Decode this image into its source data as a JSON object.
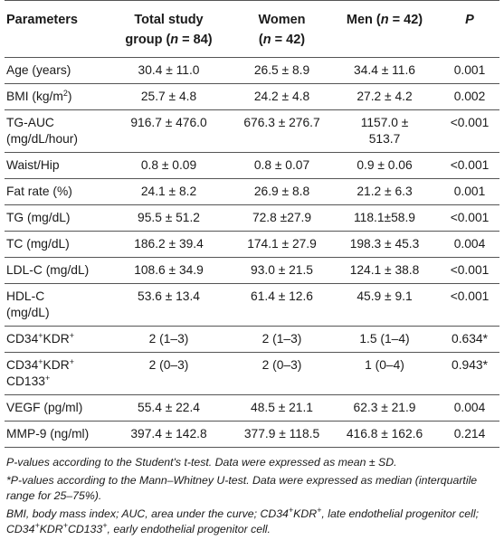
{
  "header": {
    "col1": "Parameters",
    "col2_line1": "Total study",
    "col2_line2a": "group (",
    "col2_n": "n",
    "col2_line2b": " = 84)",
    "col3_line1": "Women",
    "col3_line2a": "(",
    "col3_n": "n",
    "col3_line2b": " = 42)",
    "col4_a": "Men (",
    "col4_n": "n",
    "col4_b": " = 42)",
    "col5": "P"
  },
  "rows": [
    {
      "param": "Age (years)",
      "total": "30.4 ± 11.0",
      "women": "26.5 ± 8.9",
      "men": "34.4 ± 11.6",
      "p": "0.001"
    },
    {
      "param_pre": "BMI (kg/m",
      "param_sup": "2",
      "param_post": ")",
      "total": "25.7 ± 4.8",
      "women": "24.2 ± 4.8",
      "men": "27.2 ± 4.2",
      "p": "0.002"
    },
    {
      "param_l1": "TG-AUC",
      "param_l2": "(mg/dL/hour)",
      "total": "916.7 ± 476.0",
      "women": "676.3 ± 276.7",
      "men_l1": "1157.0 ±",
      "men_l2": "513.7",
      "p": "<0.001"
    },
    {
      "param": "Waist/Hip",
      "total": "0.8 ± 0.09",
      "women": "0.8 ± 0.07",
      "men": "0.9 ± 0.06",
      "p": "<0.001"
    },
    {
      "param": "Fat rate (%)",
      "total": "24.1 ± 8.2",
      "women": "26.9 ± 8.8",
      "men": "21.2 ± 6.3",
      "p": "0.001"
    },
    {
      "param": "TG (mg/dL)",
      "total": "95.5 ± 51.2",
      "women": "72.8 ±27.9",
      "men": "118.1±58.9",
      "p": "<0.001"
    },
    {
      "param": "TC (mg/dL)",
      "total": "186.2 ± 39.4",
      "women": "174.1 ± 27.9",
      "men": "198.3 ± 45.3",
      "p": "0.004"
    },
    {
      "param": "LDL-C (mg/dL)",
      "total": "108.6 ± 34.9",
      "women": "93.0 ± 21.5",
      "men": "124.1 ± 38.8",
      "p": "<0.001"
    },
    {
      "param_l1": "HDL-C",
      "param_l2": "(mg/dL)",
      "total": "53.6 ± 13.4",
      "women": "61.4 ± 12.6",
      "men": "45.9 ± 9.1",
      "p": "<0.001"
    },
    {
      "param_a": "CD34",
      "param_sup1": "+",
      "param_b": "KDR",
      "param_sup2": "+",
      "total": "2 (1–3)",
      "women": "2 (1–3)",
      "men": "1.5 (1–4)",
      "p": "0.634*"
    },
    {
      "param_a": "CD34",
      "param_sup1": "+",
      "param_b": "KDR",
      "param_sup2": "+",
      "param_c": "CD133",
      "param_sup3": "+",
      "total": "2 (0–3)",
      "women": "2 (0–3)",
      "men": "1 (0–4)",
      "p": "0.943*"
    },
    {
      "param": "VEGF (pg/ml)",
      "total": "55.4 ± 22.4",
      "women": "48.5 ± 21.1",
      "men": "62.3 ± 21.9",
      "p": "0.004"
    },
    {
      "param": "MMP-9 (ng/ml)",
      "total": "397.4 ± 142.8",
      "women": "377.9 ± 118.5",
      "men": "416.8 ± 162.6",
      "p": "0.214"
    }
  ],
  "notes": {
    "n1": "P-values according to the Student's t-test. Data were expressed as mean ± SD.",
    "n2": "*P-values according to the Mann–Whitney U-test. Data were expressed as median (interquartile range for 25–75%).",
    "n3_a": "BMI, body mass index; AUC, area under the curve; CD34",
    "n3_s1": "+",
    "n3_b": "KDR",
    "n3_s2": "+",
    "n3_c": ", late endothelial progenitor cell; CD34",
    "n3_s3": "+",
    "n3_d": "KDR",
    "n3_s4": "+",
    "n3_e": "CD133",
    "n3_s5": "+",
    "n3_f": ", early endothelial progenitor cell."
  }
}
